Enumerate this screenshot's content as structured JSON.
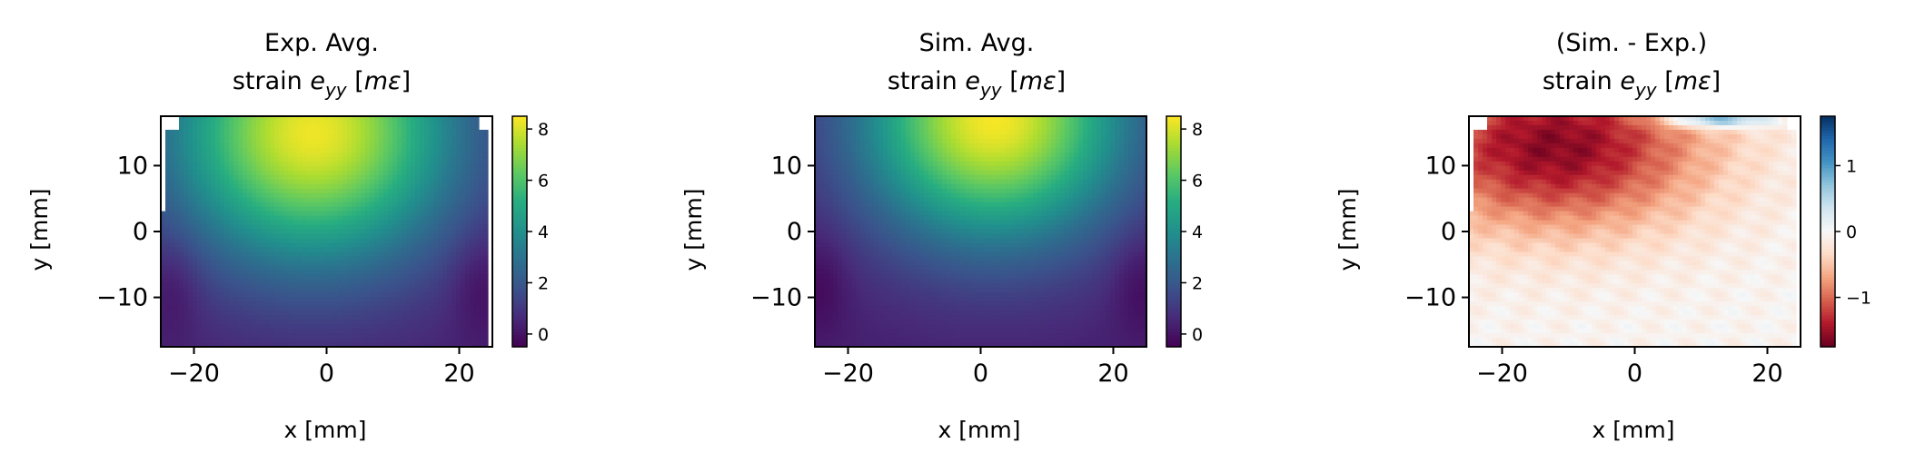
{
  "chart_data": [
    {
      "type": "heatmap",
      "title": {
        "line1": "Exp. Avg.",
        "prefix": "strain ",
        "var": "e",
        "sub": "yy",
        "unit_open": " [",
        "unit": "mε",
        "unit_close": "]"
      },
      "xlabel": "x [mm]",
      "ylabel": "y [mm]",
      "xlim": [
        -25,
        25
      ],
      "ylim": [
        -17.5,
        17.5
      ],
      "xticks": [
        -20,
        0,
        20
      ],
      "xtick_labels": [
        "−20",
        "0",
        "20"
      ],
      "yticks": [
        -10,
        0,
        10
      ],
      "ytick_labels": [
        "−10",
        "0",
        "10"
      ],
      "colormap": "viridis",
      "clim": [
        -0.5,
        8.5
      ],
      "colorbar_ticks": [
        0,
        2,
        4,
        6,
        8
      ],
      "colorbar_tick_labels": [
        "0",
        "2",
        "4",
        "6",
        "8"
      ],
      "field": {
        "description_free": true,
        "peak": {
          "x": -2,
          "y": 15,
          "value": 8.3
        },
        "background_value": 0.3,
        "x_decay": 15,
        "y_decay": 14,
        "edge_lobes": [
          {
            "x": -23,
            "y": -8,
            "value": -0.4
          },
          {
            "x": 23,
            "y": -8,
            "value": -0.4
          }
        ]
      },
      "missing_data_edges": true
    },
    {
      "type": "heatmap",
      "title": {
        "line1": "Sim. Avg.",
        "prefix": "strain ",
        "var": "e",
        "sub": "yy",
        "unit_open": " [",
        "unit": "mε",
        "unit_close": "]"
      },
      "xlabel": "x [mm]",
      "ylabel": "y [mm]",
      "xlim": [
        -25,
        25
      ],
      "ylim": [
        -17.5,
        17.5
      ],
      "xticks": [
        -20,
        0,
        20
      ],
      "xtick_labels": [
        "−20",
        "0",
        "20"
      ],
      "yticks": [
        -10,
        0,
        10
      ],
      "ytick_labels": [
        "−10",
        "0",
        "10"
      ],
      "colormap": "viridis",
      "clim": [
        -0.5,
        8.5
      ],
      "colorbar_ticks": [
        0,
        2,
        4,
        6,
        8
      ],
      "colorbar_tick_labels": [
        "0",
        "2",
        "4",
        "6",
        "8"
      ],
      "field": {
        "peak": {
          "x": 2,
          "y": 17,
          "value": 8.4
        },
        "background_value": 0.3,
        "x_decay": 14,
        "y_decay": 13,
        "edge_lobes": [
          {
            "x": -24,
            "y": -8,
            "value": -0.4
          },
          {
            "x": 24,
            "y": -8,
            "value": -0.4
          }
        ]
      },
      "missing_data_edges": false
    },
    {
      "type": "heatmap",
      "title": {
        "line1": "(Sim. - Exp.)",
        "prefix": "strain ",
        "var": "e",
        "sub": "yy",
        "unit_open": " [",
        "unit": "mε",
        "unit_close": "]"
      },
      "xlabel": "x [mm]",
      "ylabel": "y [mm]",
      "xlim": [
        -25,
        25
      ],
      "ylim": [
        -17.5,
        17.5
      ],
      "xticks": [
        -20,
        0,
        20
      ],
      "xtick_labels": [
        "−20",
        "0",
        "20"
      ],
      "yticks": [
        -10,
        0,
        10
      ],
      "ytick_labels": [
        "−10",
        "0",
        "10"
      ],
      "colormap": "RdBu",
      "clim": [
        -1.75,
        1.75
      ],
      "colorbar_ticks": [
        -1,
        0,
        1
      ],
      "colorbar_tick_labels": [
        "−1",
        "0",
        "1"
      ],
      "field": {
        "trough": {
          "x": -12,
          "y": 13,
          "value": -1.6
        },
        "background_value": -0.05,
        "x_decay": 16,
        "y_decay": 9,
        "positive_band": {
          "x": 12,
          "y": 17,
          "value": 1.2
        }
      },
      "missing_data_edges": true
    }
  ]
}
